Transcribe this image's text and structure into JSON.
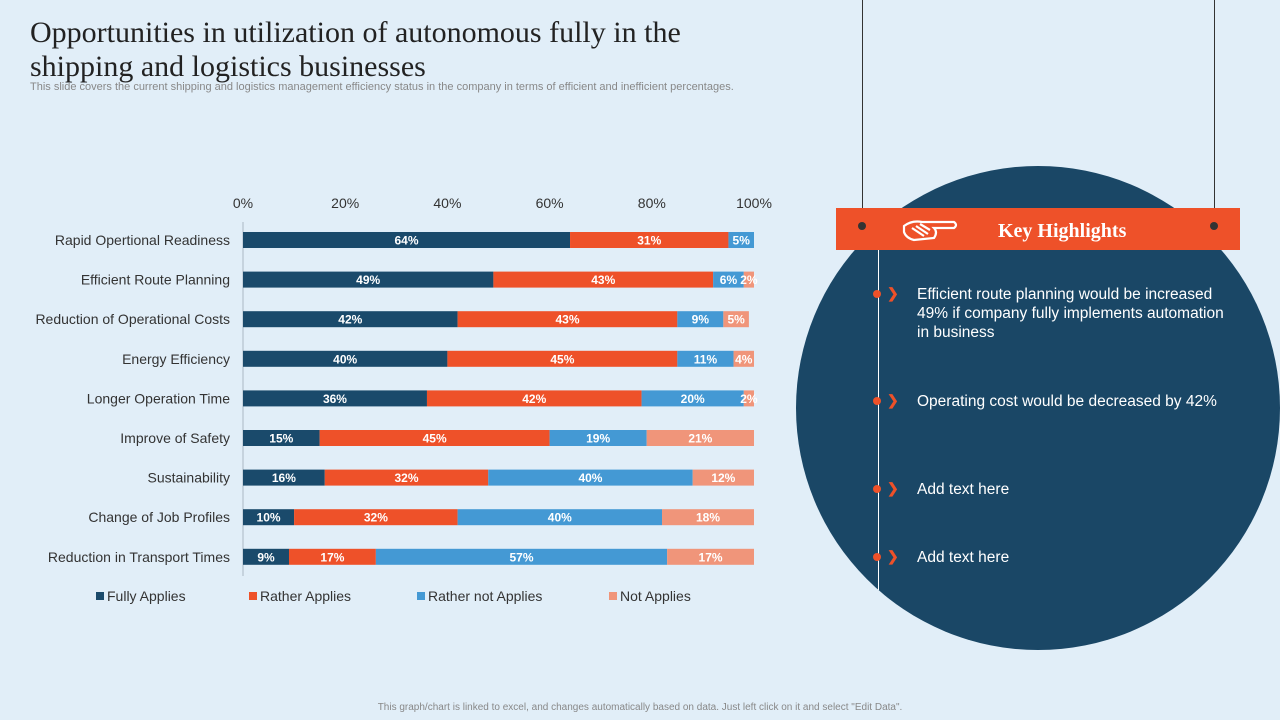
{
  "title": "Opportunities in utilization of autonomous fully in the shipping and logistics businesses",
  "subtitle": "This slide covers the current shipping and logistics management efficiency status in the company in terms of efficient and inefficient percentages.",
  "footer": "This graph/chart is linked to excel, and changes automatically based on data. Just left click on it and select \"Edit Data\".",
  "colors": {
    "fully": "#1a4a6b",
    "rather": "#ee5129",
    "rather_not": "#4499d4",
    "not": "#f0957a"
  },
  "chart_data": {
    "type": "bar",
    "orientation": "horizontal",
    "stacked": true,
    "xlim": [
      0,
      100
    ],
    "ticks": [
      "0%",
      "20%",
      "40%",
      "60%",
      "80%",
      "100%"
    ],
    "legend_position": "bottom",
    "categories": [
      "Rapid Opertional Readiness",
      "Efficient Route Planning",
      "Reduction of Operational Costs",
      "Energy Efficiency",
      "Longer Operation Time",
      "Improve of Safety",
      "Sustainability",
      "Change of Job Profiles",
      "Reduction in Transport Times"
    ],
    "series": [
      {
        "name": "Fully Applies",
        "values": [
          64,
          49,
          42,
          40,
          36,
          15,
          16,
          10,
          9
        ]
      },
      {
        "name": "Rather Applies",
        "values": [
          31,
          43,
          43,
          45,
          42,
          45,
          32,
          32,
          17
        ]
      },
      {
        "name": "Rather not Applies",
        "values": [
          5,
          6,
          9,
          11,
          20,
          19,
          40,
          40,
          57
        ]
      },
      {
        "name": "Not Applies",
        "values": [
          0,
          2,
          5,
          4,
          2,
          21,
          12,
          18,
          17
        ]
      }
    ]
  },
  "highlights": {
    "title": "Key Highlights",
    "icon": "pointing-hand-icon",
    "items": [
      "Efficient route planning would be increased 49% if company fully  implements automation in business",
      "Operating cost would be decreased by 42%",
      "Add text here",
      "Add text here"
    ]
  }
}
